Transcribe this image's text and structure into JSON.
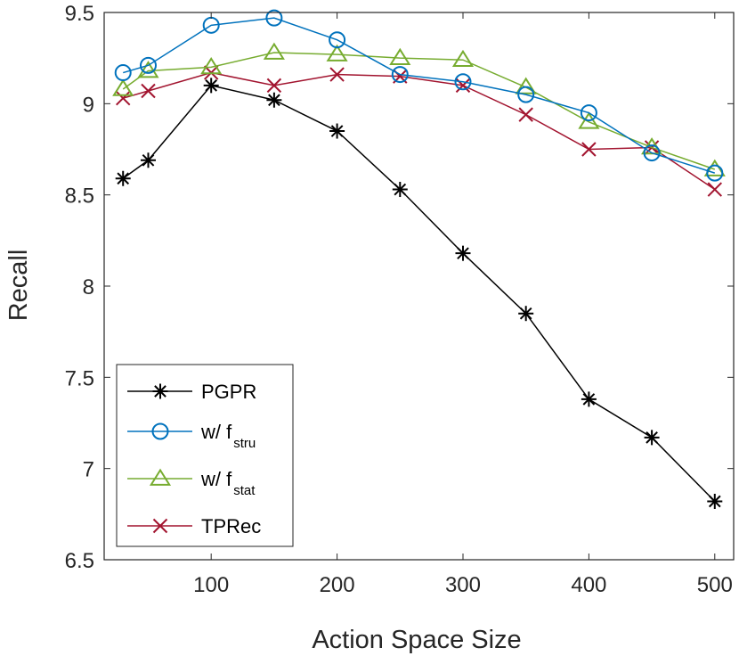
{
  "chart_data": {
    "type": "line",
    "title": "",
    "xlabel": "Action Space Size",
    "ylabel": "Recall",
    "xlim": [
      15,
      515
    ],
    "ylim": [
      6.5,
      9.5
    ],
    "x": [
      30,
      50,
      100,
      150,
      200,
      250,
      300,
      350,
      400,
      450,
      500
    ],
    "xticks": [
      100,
      200,
      300,
      400,
      500
    ],
    "xtick_labels": [
      "100",
      "200",
      "300",
      "400",
      "500"
    ],
    "yticks": [
      6.5,
      7,
      7.5,
      8,
      8.5,
      9,
      9.5
    ],
    "ytick_labels": [
      "6.5",
      "7",
      "7.5",
      "8",
      "8.5",
      "9",
      "9.5"
    ],
    "grid": false,
    "legend_position": "bottom-left",
    "series": [
      {
        "name": "PGPR",
        "label_main": "PGPR",
        "label_sub": "",
        "color": "#000000",
        "marker": "asterisk",
        "values": [
          8.59,
          8.69,
          9.1,
          9.02,
          8.85,
          8.53,
          8.18,
          7.85,
          7.38,
          7.17,
          6.82
        ]
      },
      {
        "name": "w/ f_stru",
        "label_main": "w/ f",
        "label_sub": "stru",
        "color": "#0072BD",
        "marker": "circle",
        "values": [
          9.17,
          9.21,
          9.43,
          9.47,
          9.35,
          9.16,
          9.12,
          9.05,
          8.95,
          8.73,
          8.62
        ]
      },
      {
        "name": "w/ f_stat",
        "label_main": "w/ f",
        "label_sub": "stat",
        "color": "#77AC30",
        "marker": "triangle",
        "values": [
          9.08,
          9.18,
          9.2,
          9.28,
          9.27,
          9.25,
          9.24,
          9.09,
          8.9,
          8.76,
          8.64
        ]
      },
      {
        "name": "TPRec",
        "label_main": "TPRec",
        "label_sub": "",
        "color": "#A2142F",
        "marker": "x",
        "values": [
          9.03,
          9.07,
          9.17,
          9.1,
          9.16,
          9.15,
          9.1,
          8.94,
          8.75,
          8.76,
          8.53
        ]
      }
    ]
  }
}
